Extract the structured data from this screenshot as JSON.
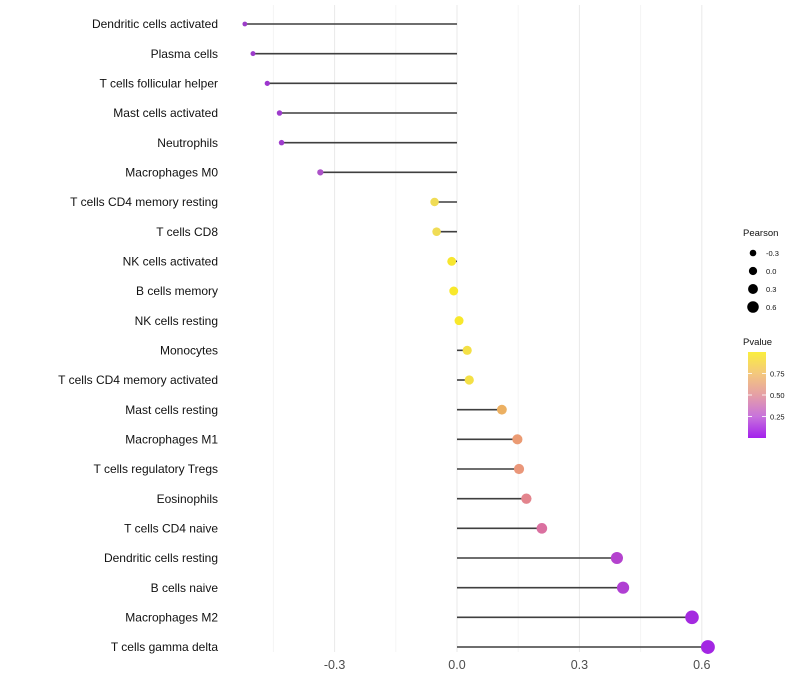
{
  "chart_data": {
    "type": "lollipop",
    "orientation": "horizontal",
    "title": "",
    "xlabel": "",
    "ylabel": "",
    "xlim": [
      -0.575,
      0.67
    ],
    "x_major_ticks": [
      -0.3,
      0.0,
      0.3,
      0.6
    ],
    "x_major_tick_labels": [
      "-0.3",
      "0.0",
      "0.3",
      "0.6"
    ],
    "x_minor_ticks": [
      -0.45,
      -0.15,
      0.15,
      0.45
    ],
    "grid": true,
    "baseline_value": 0.0,
    "categories": [
      "Dendritic cells activated",
      "Plasma cells",
      "T cells follicular helper",
      "Mast cells activated",
      "Neutrophils",
      "Macrophages M0",
      "T cells CD4 memory resting",
      "T cells CD8",
      "NK cells activated",
      "B cells memory",
      "NK cells resting",
      "Monocytes",
      "T cells CD4 memory activated",
      "Mast cells resting",
      "Macrophages M1",
      "T cells regulatory  Tregs",
      "Eosinophils",
      "T cells CD4 naive",
      "Dendritic cells resting",
      "B cells naive",
      "Macrophages M2",
      "T cells gamma delta"
    ],
    "series": [
      {
        "name": "Pearson",
        "values": [
          -0.52,
          -0.5,
          -0.465,
          -0.435,
          -0.43,
          -0.335,
          -0.055,
          -0.05,
          -0.013,
          -0.008,
          0.005,
          0.025,
          0.03,
          0.11,
          0.148,
          0.152,
          0.17,
          0.208,
          0.392,
          0.407,
          0.576,
          0.615
        ]
      }
    ],
    "point_colors": [
      "#9C3DC8",
      "#9C3BCA",
      "#9D36CE",
      "#9E3CCC",
      "#9E3CCC",
      "#AC52C8",
      "#F0DC55",
      "#F0DC55",
      "#F7E62F",
      "#F8E82B",
      "#F8E82B",
      "#F4E046",
      "#F4E046",
      "#ECB062",
      "#EB9B73",
      "#EA977A",
      "#E3848D",
      "#DA70A0",
      "#B442CE",
      "#B03FD3",
      "#A42AE0",
      "#A326E3"
    ],
    "stem_color": "#3f3f3f",
    "major_grid_color": "#e9e9e9",
    "minor_grid_color": "#f4f4f4",
    "legend_position": "right"
  },
  "legend_pearson": {
    "title": "Pearson",
    "entries": [
      {
        "label": "-0.3",
        "value": -0.3
      },
      {
        "label": "0.0",
        "value": 0.0
      },
      {
        "label": "0.3",
        "value": 0.3
      },
      {
        "label": "0.6",
        "value": 0.6
      }
    ],
    "dot_color": "#000000"
  },
  "legend_pvalue": {
    "title": "Pvalue",
    "tick_labels": [
      "0.75",
      "0.50",
      "0.25"
    ],
    "tick_values": [
      0.75,
      0.5,
      0.25
    ],
    "gradient_stops": [
      "#A320EC",
      "#C873DC",
      "#E59FA6",
      "#F4C87D",
      "#FAEE3E"
    ]
  }
}
